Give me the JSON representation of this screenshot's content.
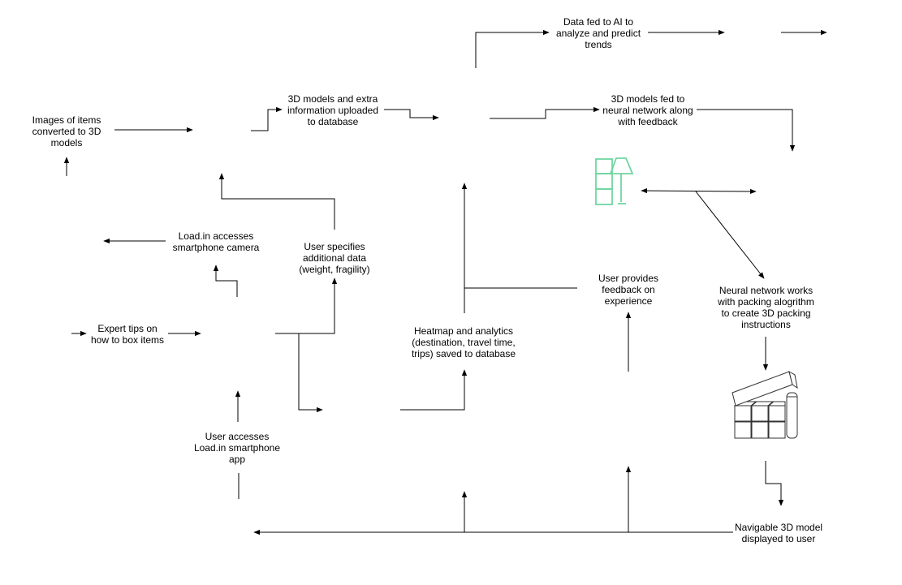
{
  "labels": {
    "data_ai": "Data fed to AI to\nanalyze and predict\ntrends",
    "models_uploaded": "3D models and extra\ninformation uploaded\nto database",
    "models_fed_nn": "3D models fed to\nneural network along\nwith feedback",
    "images_converted": "Images of items\nconverted to 3D\nmodels",
    "camera_access": "Load.in accesses\nsmartphone camera",
    "user_specifies": "User specifies\nadditional data\n(weight, fragility)",
    "user_feedback": "User provides\nfeedback on\nexperience",
    "nn_packing": "Neural network works\nwith packing alogrithm\nto create 3D packing\ninstructions",
    "expert_tips": "Expert tips on\nhow to box items",
    "heatmap": "Heatmap and analytics\n(destination, travel time,\ntrips) saved to database",
    "user_accesses_app": "User accesses\nLoad.in smartphone\napp",
    "navigable_model": "Navigable 3D model\ndisplayed to user"
  },
  "colors": {
    "line": "#000000",
    "furniture_icon": "#6fd6a0",
    "box_icon": "#333333"
  },
  "icons": [
    "furniture-icon",
    "packed-boxes-icon"
  ]
}
